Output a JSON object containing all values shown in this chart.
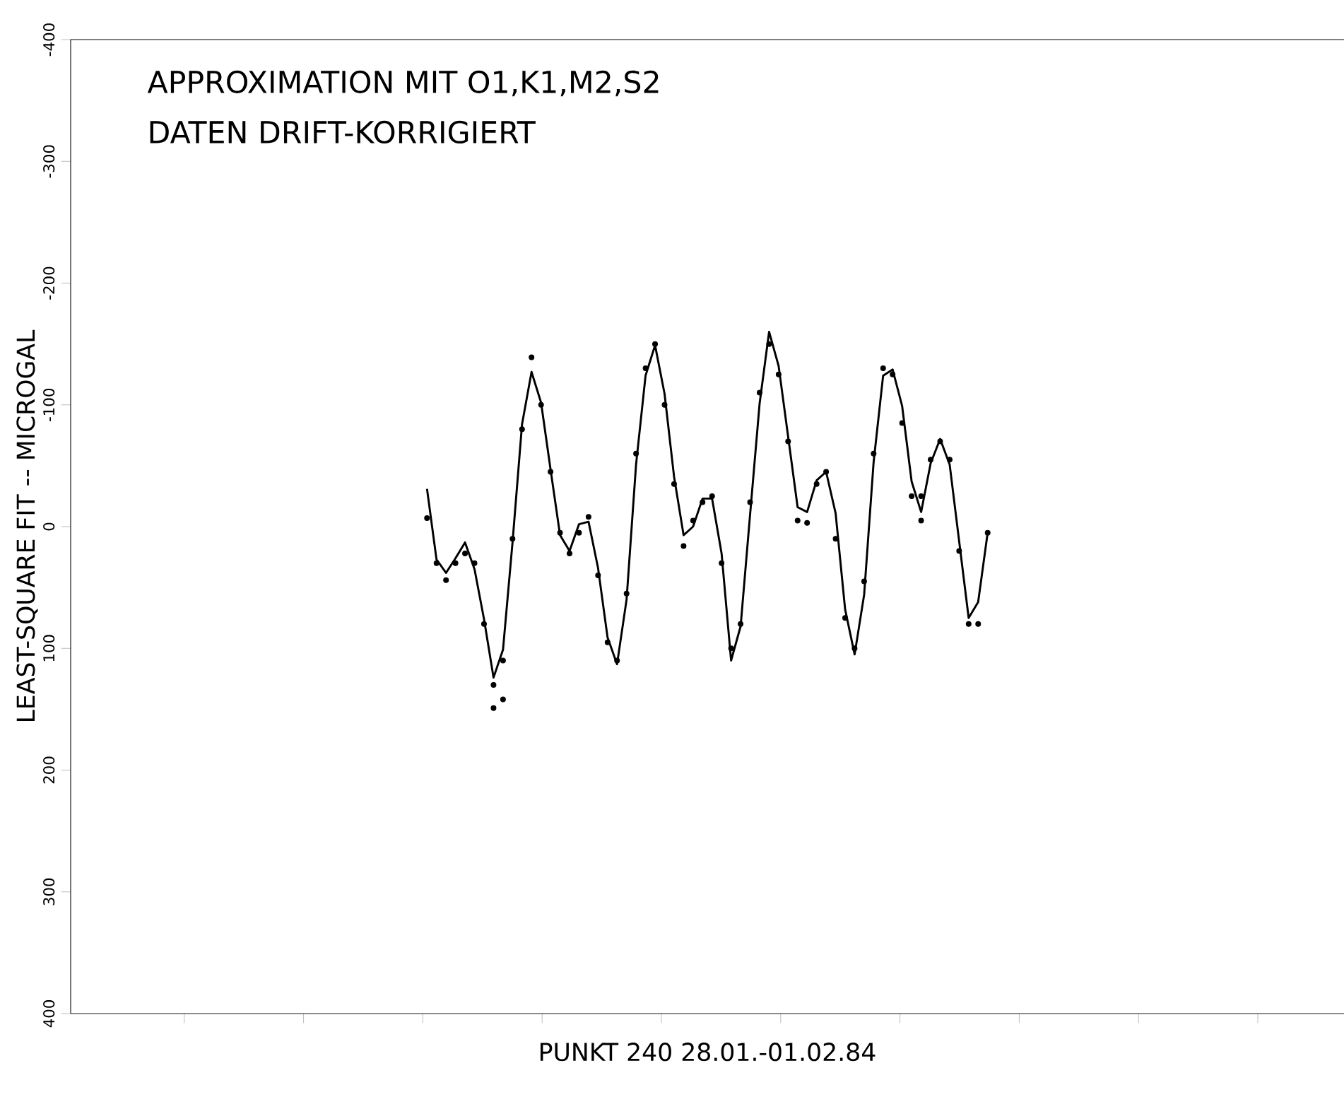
{
  "chart_data": {
    "type": "line",
    "title": "APPROXIMATION MIT O1,K1,M2,S2",
    "subtitle": "DATEN DRIFT-KORRIGIERT",
    "xlabel": "PUNKT 240  28.01.-01.02.84",
    "ylabel": "LEAST-SQUARE FIT -- MICROGAL",
    "categories": [
      null,
      null,
      null,
      null,
      null,
      null,
      null,
      null,
      null,
      null,
      null,
      null,
      null,
      null,
      null,
      null,
      null,
      null,
      null,
      null,
      null,
      null,
      null,
      null,
      null,
      null,
      null,
      null,
      null,
      null,
      null,
      null,
      null,
      null,
      null,
      null,
      null,
      null,
      null,
      null,
      null,
      null,
      null,
      null,
      null,
      null,
      null,
      null,
      null,
      null,
      null,
      null,
      null,
      null,
      null,
      null,
      null,
      null,
      null,
      null,
      null,
      null,
      null,
      null,
      null,
      null,
      null,
      null,
      null,
      null,
      null,
      null,
      null,
      null,
      null,
      null,
      null,
      null,
      null,
      null,
      null,
      null,
      null,
      null,
      null,
      null,
      null,
      null,
      null,
      null,
      null,
      null,
      null,
      null,
      null,
      null,
      null,
      null,
      null,
      null,
      null,
      null,
      null,
      null,
      null,
      null,
      null,
      null,
      null,
      null,
      null,
      null,
      null,
      null,
      null,
      null,
      null,
      null,
      null,
      null,
      null,
      null,
      null,
      null,
      null,
      null,
      null,
      null,
      null,
      null,
      null,
      null,
      null,
      null
    ],
    "ylim": [
      400,
      -400
    ],
    "yticks": [
      -400,
      -300,
      -200,
      -100,
      0,
      100,
      200,
      300,
      400
    ],
    "series": [
      {
        "color": "#000000",
        "values": [
          null,
          null,
          null,
          null,
          null,
          null,
          null,
          null,
          null,
          null,
          null,
          null,
          null,
          null,
          null,
          null,
          null,
          null,
          null,
          null,
          null,
          null,
          null,
          null,
          null,
          null,
          null,
          null,
          null,
          null,
          null,
          null,
          null,
          null,
          null,
          null,
          null,
          -31,
          27,
          38,
          26,
          13,
          35,
          76,
          124,
          101,
          13,
          -84,
          -127,
          -102,
          -47,
          7,
          20,
          -2,
          -4,
          34,
          91,
          113,
          60,
          -51,
          -124,
          -149,
          -109,
          -41,
          7,
          0,
          -23,
          -23,
          22,
          110,
          82,
          -10,
          -101,
          -160,
          -132,
          -74,
          -16,
          -12,
          -38,
          -45,
          -11,
          68,
          105,
          56,
          -53,
          -124,
          -129,
          -99,
          -37,
          -12,
          -52,
          -72,
          -51,
          12,
          75,
          62,
          5,
          null,
          null,
          null,
          null,
          null,
          null,
          null,
          null,
          null,
          null,
          null,
          null,
          null,
          null,
          null,
          null,
          null,
          null,
          null,
          null,
          null,
          null,
          null,
          null,
          null,
          null,
          null,
          null,
          null,
          null,
          null,
          null,
          null,
          null,
          null,
          null,
          null
        ]
      },
      {
        "type": "scatter",
        "color": "#000000",
        "marker": "circle",
        "values": [
          null,
          null,
          null,
          null,
          null,
          null,
          null,
          null,
          null,
          null,
          null,
          null,
          null,
          null,
          null,
          null,
          null,
          null,
          null,
          null,
          null,
          null,
          null,
          null,
          null,
          null,
          null,
          null,
          null,
          null,
          null,
          null,
          null,
          null,
          null,
          null,
          null,
          -7,
          30,
          44,
          30,
          22,
          30,
          80,
          149,
          110,
          10,
          -80,
          -139,
          -100,
          -45,
          5,
          22,
          5,
          -8,
          40,
          95,
          110,
          55,
          -60,
          -130,
          -150,
          -100,
          -35,
          16,
          -5,
          -20,
          -25,
          30,
          100,
          80,
          -20,
          -110,
          -150,
          -125,
          -70,
          -5,
          -3,
          -35,
          -45,
          10,
          75,
          100,
          45,
          -60,
          -130,
          -125,
          -85,
          -25,
          -5,
          -55,
          -70,
          -55,
          20,
          80,
          80,
          5,
          null,
          null,
          null,
          null,
          null,
          null,
          null,
          null,
          null,
          null,
          null,
          null,
          null,
          null,
          null,
          null,
          null,
          null,
          null,
          null,
          null,
          null,
          null,
          null,
          null,
          null,
          null,
          null,
          null,
          null,
          null,
          null,
          null,
          null,
          null,
          null,
          null
        ]
      },
      {
        "type": "scatter",
        "color": "#000000",
        "marker": "circle",
        "values": [
          null,
          null,
          null,
          null,
          null,
          null,
          null,
          null,
          null,
          null,
          null,
          null,
          null,
          null,
          null,
          null,
          null,
          null,
          null,
          null,
          null,
          null,
          null,
          null,
          null,
          null,
          null,
          null,
          null,
          null,
          null,
          null,
          null,
          null,
          null,
          null,
          null,
          null,
          null,
          null,
          null,
          null,
          null,
          null,
          130,
          142,
          null,
          null,
          null,
          null,
          null,
          null,
          null,
          null,
          null,
          null,
          null,
          null,
          null,
          null,
          null,
          null,
          null,
          null,
          null,
          null,
          null,
          null,
          null,
          null,
          null,
          null,
          null,
          null,
          null,
          null,
          null,
          null,
          null,
          null,
          null,
          null,
          null,
          null,
          null,
          null,
          null,
          null,
          null,
          -25,
          null,
          null,
          null,
          null,
          null,
          null,
          null,
          null,
          null,
          null,
          null,
          null,
          null,
          null,
          null,
          null,
          null,
          null,
          null,
          null,
          null,
          null,
          null,
          null,
          null,
          null,
          null,
          null,
          null,
          null,
          null,
          null,
          null,
          null,
          null,
          null,
          null,
          null,
          null,
          null,
          null,
          null,
          null,
          null
        ]
      }
    ]
  }
}
